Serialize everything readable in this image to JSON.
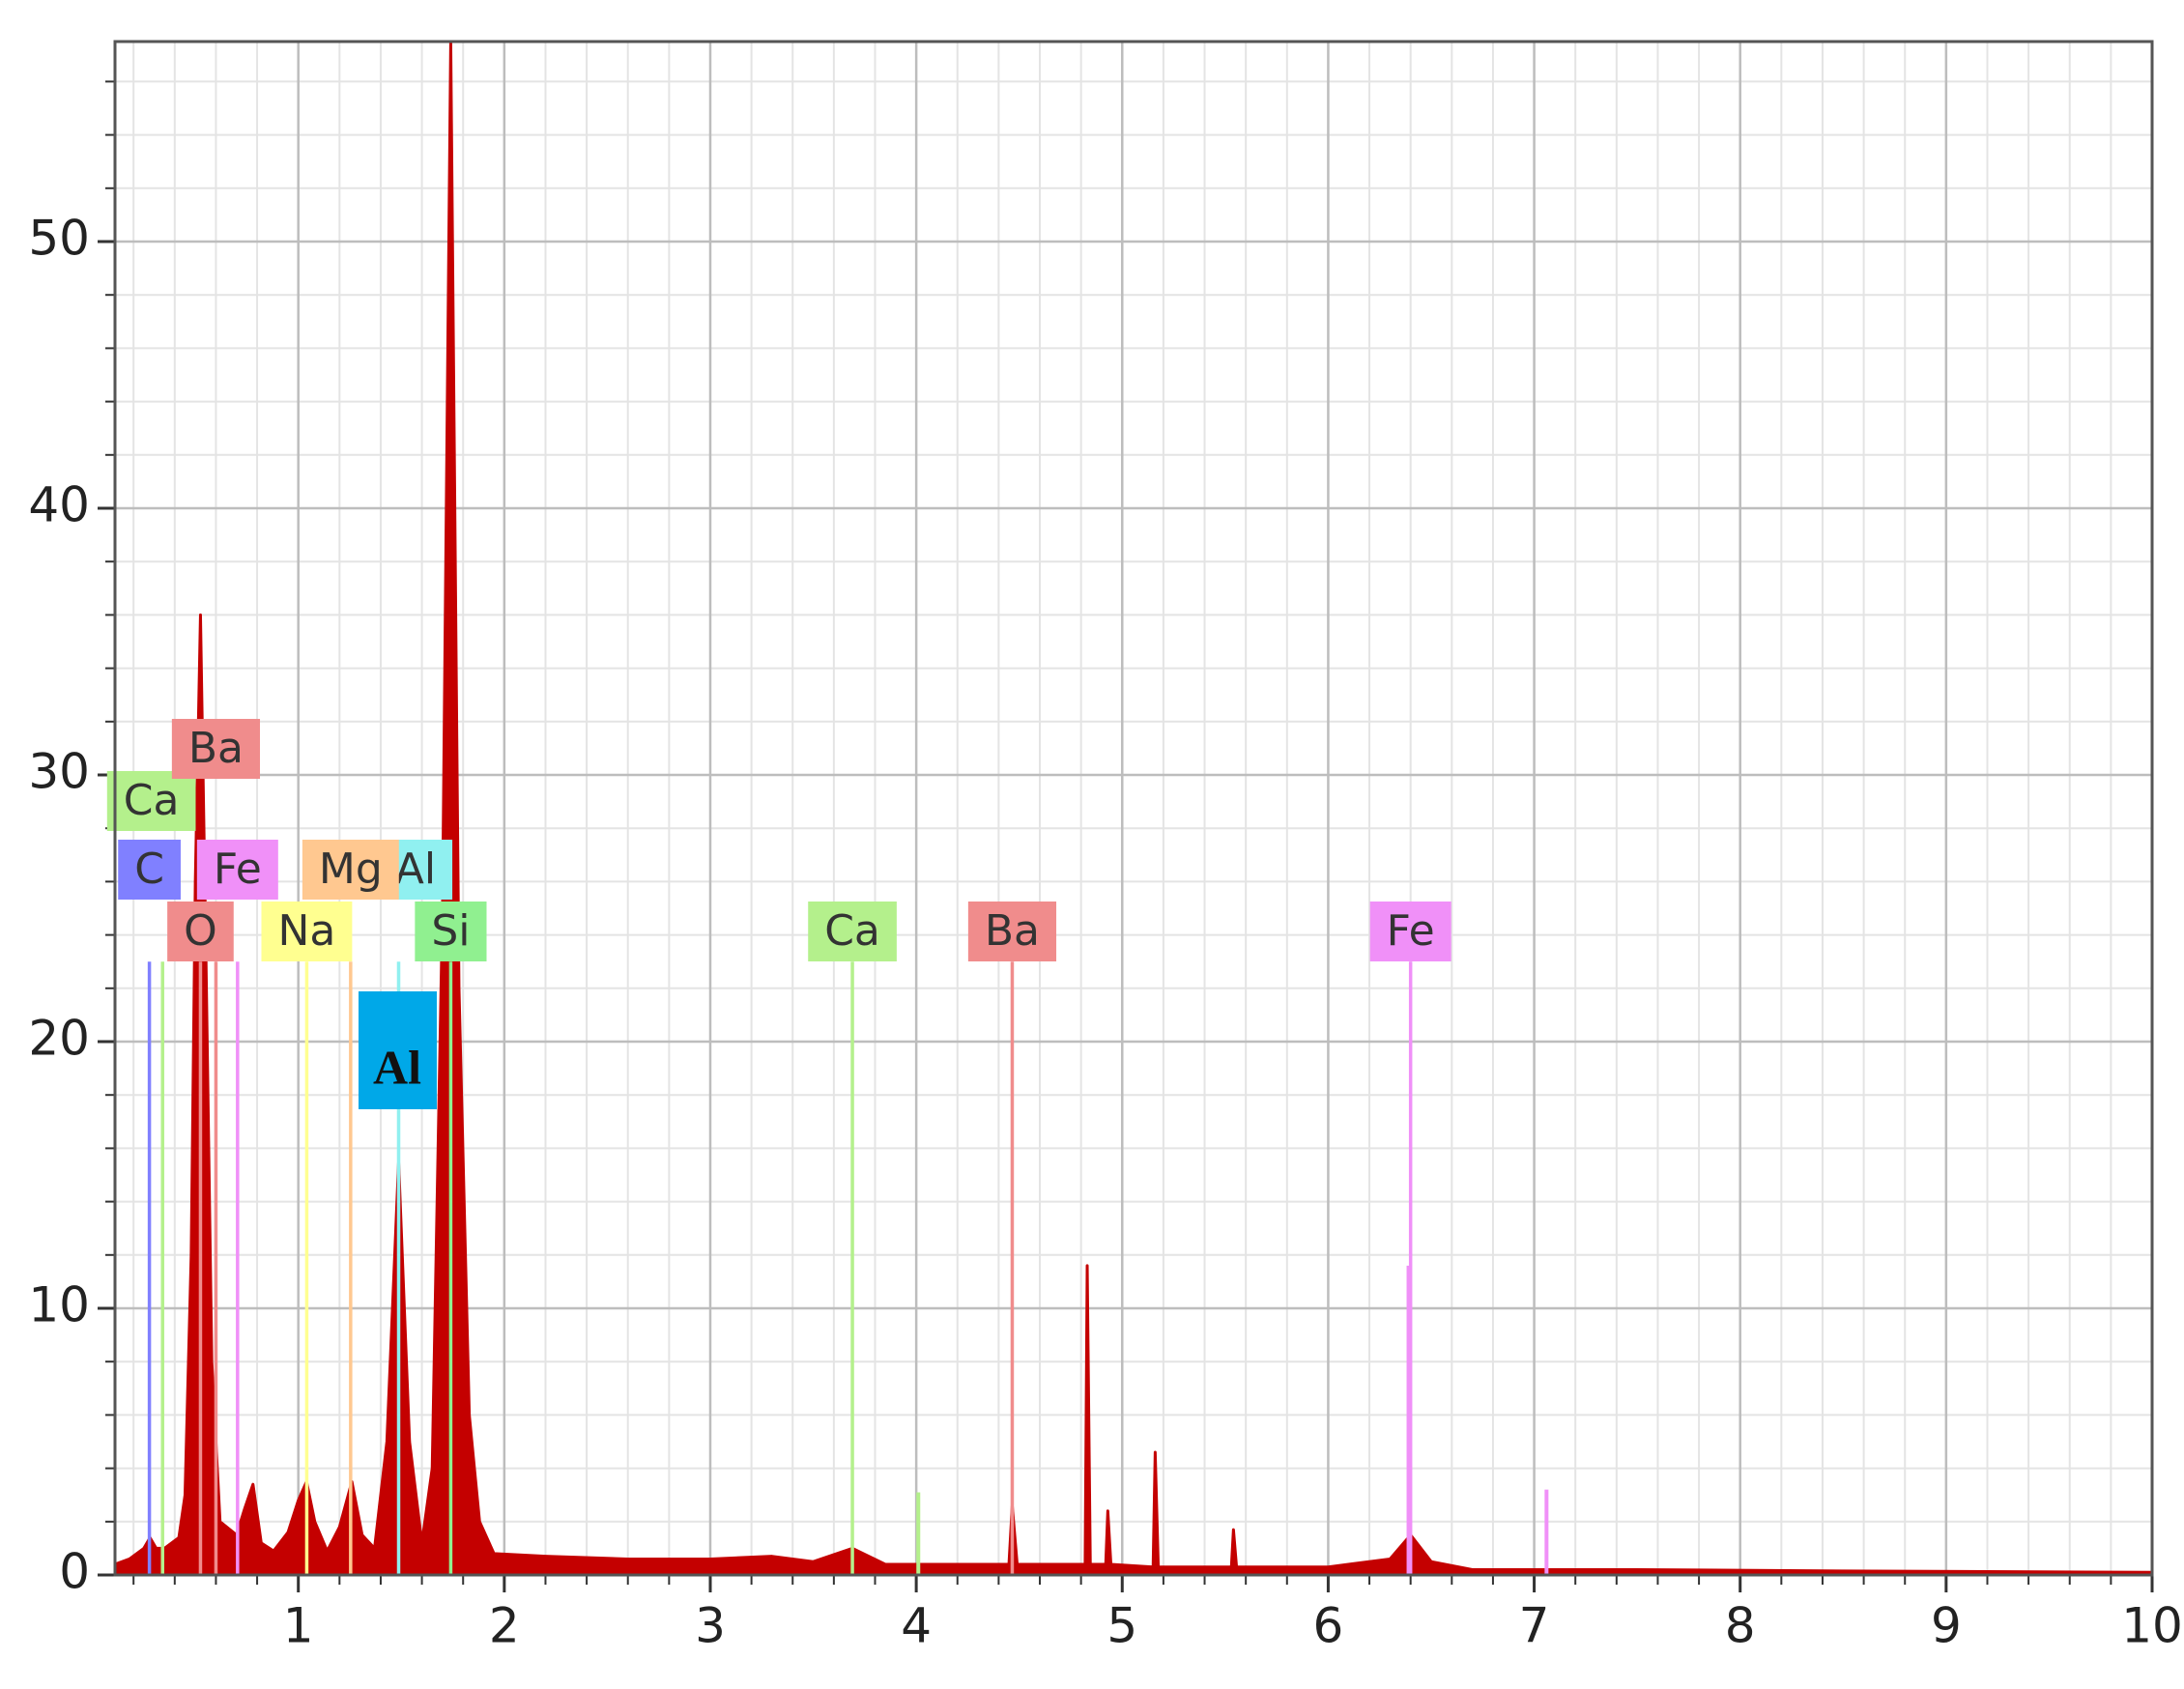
{
  "chart_data": {
    "type": "area",
    "xlim": [
      0.11,
      10
    ],
    "ylim": [
      0,
      57.5
    ],
    "xticks": [
      1,
      2,
      3,
      4,
      5,
      6,
      7,
      8,
      9,
      10
    ],
    "yticks": [
      0,
      10,
      20,
      30,
      40,
      50
    ],
    "minor_xstep": 0.2,
    "minor_ystep": 2,
    "grid": true,
    "series": [
      {
        "color": "#c40000",
        "x": [
          0.11,
          0.18,
          0.25,
          0.28,
          0.31,
          0.35,
          0.42,
          0.45,
          0.48,
          0.5,
          0.525,
          0.55,
          0.58,
          0.62,
          0.7,
          0.74,
          0.78,
          0.82,
          0.88,
          0.95,
          1.0,
          1.04,
          1.08,
          1.14,
          1.2,
          1.26,
          1.31,
          1.37,
          1.43,
          1.487,
          1.54,
          1.6,
          1.65,
          1.7,
          1.74,
          1.78,
          1.83,
          1.88,
          1.95,
          2.2,
          2.6,
          3.0,
          3.3,
          3.5,
          3.69,
          3.85,
          4.2,
          4.45,
          4.466,
          4.49,
          4.82,
          4.83,
          4.845,
          4.92,
          4.93,
          4.945,
          5.15,
          5.16,
          5.175,
          5.53,
          5.54,
          5.555,
          6.0,
          6.3,
          6.4,
          6.5,
          6.7,
          7.5,
          8.5,
          10
        ],
        "values": [
          0.4,
          0.6,
          1.0,
          1.4,
          1.0,
          1.0,
          1.4,
          3,
          12,
          26,
          36,
          24,
          8,
          2,
          1.5,
          2.5,
          3.4,
          1.2,
          0.9,
          1.6,
          2.8,
          3.5,
          2.0,
          0.9,
          1.8,
          3.5,
          1.5,
          1.0,
          5,
          15.5,
          5,
          1.2,
          4,
          25,
          57.5,
          22,
          6,
          2,
          0.8,
          0.7,
          0.6,
          0.6,
          0.7,
          0.5,
          1.0,
          0.4,
          0.4,
          0.4,
          2.6,
          0.4,
          0.4,
          11.6,
          0.4,
          0.4,
          2.4,
          0.4,
          0.3,
          4.6,
          0.3,
          0.3,
          1.7,
          0.3,
          0.3,
          0.6,
          1.5,
          0.5,
          0.2,
          0.2,
          0.15,
          0.1
        ]
      }
    ],
    "markers": [
      {
        "label": "C",
        "x": 0.277,
        "height": 23,
        "color": "#8080ff"
      },
      {
        "label": "Ca",
        "x": 0.341,
        "height": 23,
        "color": "#b4f08c"
      },
      {
        "label": "Ba",
        "x": 0.6,
        "height": 23,
        "color": "#f08c8c"
      },
      {
        "label": "O",
        "x": 0.525,
        "height": 23,
        "color": "#f08c8c"
      },
      {
        "label": "Fe",
        "x": 0.705,
        "height": 23,
        "color": "#f090f8"
      },
      {
        "label": "Na",
        "x": 1.041,
        "height": 23,
        "color": "#ffff90"
      },
      {
        "label": "Al",
        "x": 1.487,
        "height": 23,
        "color": "#90f0f0"
      },
      {
        "label": "Mg",
        "x": 1.254,
        "height": 23,
        "color": "#ffc890"
      },
      {
        "label": "Si",
        "x": 1.74,
        "height": 23,
        "color": "#90f090"
      },
      {
        "label": "Ca",
        "x": 3.69,
        "height": 23,
        "color": "#b4f08c"
      },
      {
        "label": "Ba",
        "x": 4.466,
        "height": 23,
        "color": "#f08c8c"
      },
      {
        "label": "Fe",
        "x": 6.4,
        "height": 23,
        "color": "#f090f8"
      }
    ],
    "minor_lines": [
      {
        "x": 4.01,
        "height": 3.1,
        "color": "#b4f08c"
      },
      {
        "x": 7.06,
        "height": 3.2,
        "color": "#f090f8"
      },
      {
        "x": 6.39,
        "height": 11.6,
        "color": "#f090f8"
      }
    ],
    "annotation": {
      "text": "Al",
      "color": "#00a8e8"
    }
  }
}
